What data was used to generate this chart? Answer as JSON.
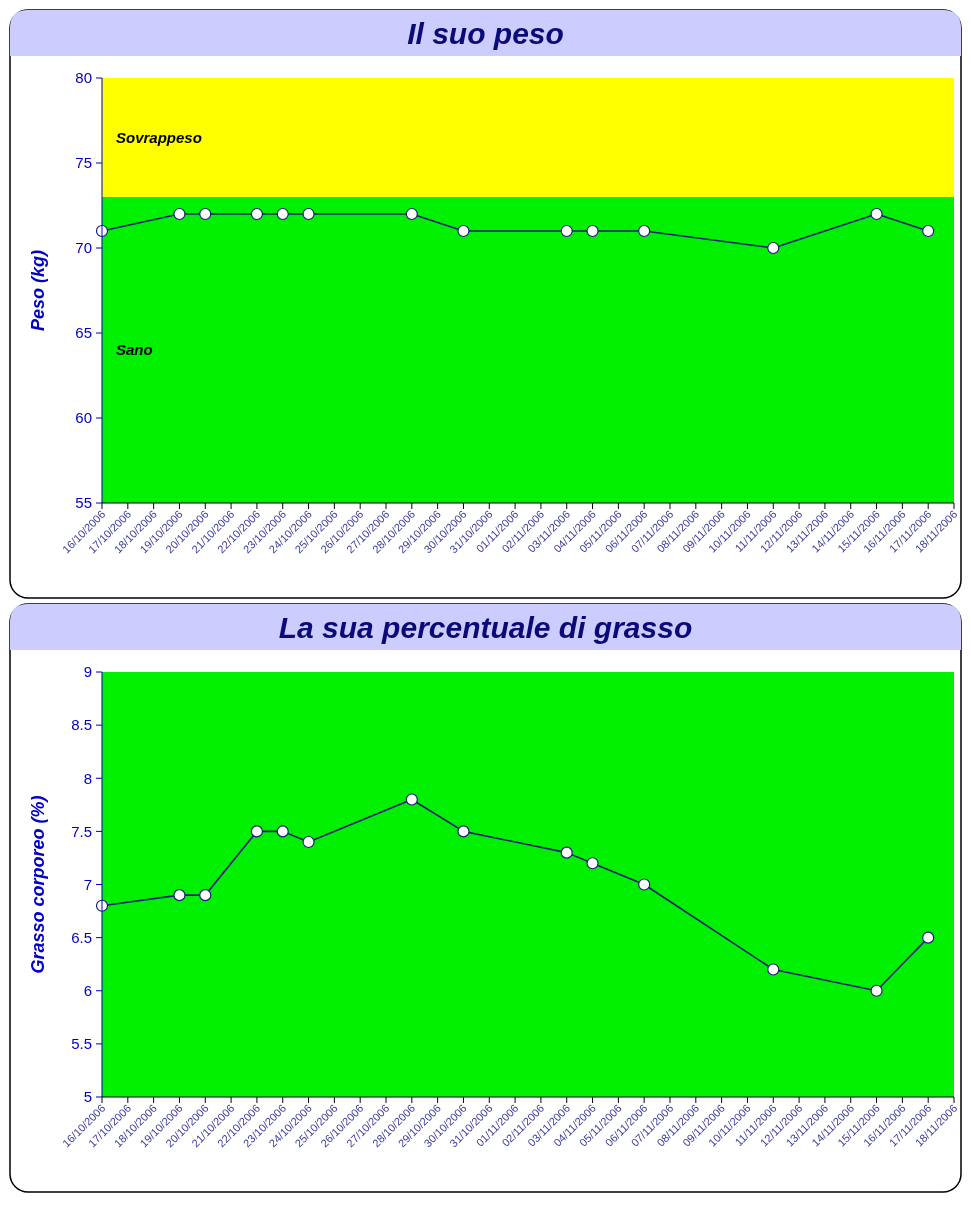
{
  "chart_data": [
    {
      "type": "line",
      "title": "Il suo peso",
      "ylabel": "Peso (kg)",
      "marker": "circle",
      "ylim": [
        55,
        80
      ],
      "yticks": [
        55,
        60,
        65,
        70,
        75,
        80
      ],
      "xlim": [
        "2006-10-16",
        "2006-11-18"
      ],
      "xticks": [
        {
          "value": "2006-10-16",
          "label": "16/10/2006"
        },
        {
          "value": "2006-10-17",
          "label": "17/10/2006"
        },
        {
          "value": "2006-10-18",
          "label": "18/10/2006"
        },
        {
          "value": "2006-10-19",
          "label": "19/10/2006"
        },
        {
          "value": "2006-10-20",
          "label": "20/10/2006"
        },
        {
          "value": "2006-10-21",
          "label": "21/10/2006"
        },
        {
          "value": "2006-10-22",
          "label": "22/10/2006"
        },
        {
          "value": "2006-10-23",
          "label": "23/10/2006"
        },
        {
          "value": "2006-10-24",
          "label": "24/10/2006"
        },
        {
          "value": "2006-10-25",
          "label": "25/10/2006"
        },
        {
          "value": "2006-10-26",
          "label": "26/10/2006"
        },
        {
          "value": "2006-10-27",
          "label": "27/10/2006"
        },
        {
          "value": "2006-10-28",
          "label": "28/10/2006"
        },
        {
          "value": "2006-10-29",
          "label": "29/10/2006"
        },
        {
          "value": "2006-10-30",
          "label": "30/10/2006"
        },
        {
          "value": "2006-10-31",
          "label": "31/10/2006"
        },
        {
          "value": "2006-11-01",
          "label": "01/11/2006"
        },
        {
          "value": "2006-11-02",
          "label": "02/11/2006"
        },
        {
          "value": "2006-11-03",
          "label": "03/11/2006"
        },
        {
          "value": "2006-11-04",
          "label": "04/11/2006"
        },
        {
          "value": "2006-11-05",
          "label": "05/11/2006"
        },
        {
          "value": "2006-11-06",
          "label": "06/11/2006"
        },
        {
          "value": "2006-11-07",
          "label": "07/11/2006"
        },
        {
          "value": "2006-11-08",
          "label": "08/11/2006"
        },
        {
          "value": "2006-11-09",
          "label": "09/11/2006"
        },
        {
          "value": "2006-11-10",
          "label": "10/11/2006"
        },
        {
          "value": "2006-11-11",
          "label": "11/11/2006"
        },
        {
          "value": "2006-11-12",
          "label": "12/11/2006"
        },
        {
          "value": "2006-11-13",
          "label": "13/11/2006"
        },
        {
          "value": "2006-11-14",
          "label": "14/11/2006"
        },
        {
          "value": "2006-11-15",
          "label": "15/11/2006"
        },
        {
          "value": "2006-11-16",
          "label": "16/11/2006"
        },
        {
          "value": "2006-11-17",
          "label": "17/11/2006"
        },
        {
          "value": "2006-11-18",
          "label": "18/11/2006"
        }
      ],
      "bands": [
        {
          "axis": "y",
          "from": 73,
          "to": 80,
          "label": "Sovrappeso",
          "color": "#ffff00"
        },
        {
          "axis": "y",
          "from": 55,
          "to": 73,
          "label": "Sano",
          "color": "#00f000"
        }
      ],
      "series": [
        {
          "color": "#1c1c7a",
          "x": [
            "2006-10-16",
            "2006-10-19",
            "2006-10-20",
            "2006-10-22",
            "2006-10-23",
            "2006-10-24",
            "2006-10-28",
            "2006-10-30",
            "2006-11-03",
            "2006-11-04",
            "2006-11-06",
            "2006-11-11",
            "2006-11-15",
            "2006-11-17"
          ],
          "values": [
            71,
            72,
            72,
            72,
            72,
            72,
            72,
            71,
            71,
            71,
            71,
            70,
            72,
            71
          ]
        }
      ]
    },
    {
      "type": "line",
      "title": "La sua percentuale di grasso",
      "ylabel": "Grasso corporeo (%)",
      "marker": "circle",
      "ylim": [
        5,
        9
      ],
      "yticks": [
        5,
        5.5,
        6,
        6.5,
        7,
        7.5,
        8,
        8.5,
        9
      ],
      "xlim": [
        "2006-10-16",
        "2006-11-18"
      ],
      "xticks": [
        {
          "value": "2006-10-16",
          "label": "16/10/2006"
        },
        {
          "value": "2006-10-17",
          "label": "17/10/2006"
        },
        {
          "value": "2006-10-18",
          "label": "18/10/2006"
        },
        {
          "value": "2006-10-19",
          "label": "19/10/2006"
        },
        {
          "value": "2006-10-20",
          "label": "20/10/2006"
        },
        {
          "value": "2006-10-21",
          "label": "21/10/2006"
        },
        {
          "value": "2006-10-22",
          "label": "22/10/2006"
        },
        {
          "value": "2006-10-23",
          "label": "23/10/2006"
        },
        {
          "value": "2006-10-24",
          "label": "24/10/2006"
        },
        {
          "value": "2006-10-25",
          "label": "25/10/2006"
        },
        {
          "value": "2006-10-26",
          "label": "26/10/2006"
        },
        {
          "value": "2006-10-27",
          "label": "27/10/2006"
        },
        {
          "value": "2006-10-28",
          "label": "28/10/2006"
        },
        {
          "value": "2006-10-29",
          "label": "29/10/2006"
        },
        {
          "value": "2006-10-30",
          "label": "30/10/2006"
        },
        {
          "value": "2006-10-31",
          "label": "31/10/2006"
        },
        {
          "value": "2006-11-01",
          "label": "01/11/2006"
        },
        {
          "value": "2006-11-02",
          "label": "02/11/2006"
        },
        {
          "value": "2006-11-03",
          "label": "03/11/2006"
        },
        {
          "value": "2006-11-04",
          "label": "04/11/2006"
        },
        {
          "value": "2006-11-05",
          "label": "05/11/2006"
        },
        {
          "value": "2006-11-06",
          "label": "06/11/2006"
        },
        {
          "value": "2006-11-07",
          "label": "07/11/2006"
        },
        {
          "value": "2006-11-08",
          "label": "08/11/2006"
        },
        {
          "value": "2006-11-09",
          "label": "09/11/2006"
        },
        {
          "value": "2006-11-10",
          "label": "10/11/2006"
        },
        {
          "value": "2006-11-11",
          "label": "11/11/2006"
        },
        {
          "value": "2006-11-12",
          "label": "12/11/2006"
        },
        {
          "value": "2006-11-13",
          "label": "13/11/2006"
        },
        {
          "value": "2006-11-14",
          "label": "14/11/2006"
        },
        {
          "value": "2006-11-15",
          "label": "15/11/2006"
        },
        {
          "value": "2006-11-16",
          "label": "16/11/2006"
        },
        {
          "value": "2006-11-17",
          "label": "17/11/2006"
        },
        {
          "value": "2006-11-18",
          "label": "18/11/2006"
        }
      ],
      "bands": [
        {
          "axis": "y",
          "from": 5,
          "to": 9,
          "color": "#00f000"
        }
      ],
      "series": [
        {
          "color": "#1c1c7a",
          "x": [
            "2006-10-16",
            "2006-10-19",
            "2006-10-20",
            "2006-10-22",
            "2006-10-23",
            "2006-10-24",
            "2006-10-28",
            "2006-10-30",
            "2006-11-03",
            "2006-11-04",
            "2006-11-06",
            "2006-11-11",
            "2006-11-15",
            "2006-11-17"
          ],
          "values": [
            6.8,
            6.9,
            6.9,
            7.5,
            7.5,
            7.4,
            7.8,
            7.5,
            7.3,
            7.2,
            7.0,
            6.2,
            6.0,
            6.5
          ]
        }
      ]
    }
  ]
}
